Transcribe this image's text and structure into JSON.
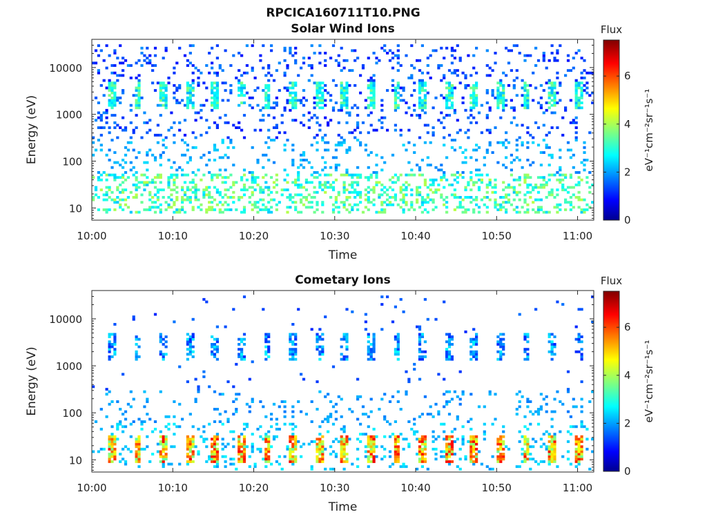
{
  "figure_title": "RPCICA160711T10.PNG",
  "chart_data": [
    {
      "type": "heatmap",
      "title": "Solar Wind Ions",
      "xlabel": "Time",
      "ylabel": "Energy (eV)",
      "x_ticks": [
        "10:00",
        "10:10",
        "10:20",
        "10:30",
        "10:40",
        "10:50",
        "11:00"
      ],
      "xlim": [
        "10:00",
        "11:02"
      ],
      "y_scale": "log",
      "y_ticks": [
        "10",
        "100",
        "1000",
        "10000"
      ],
      "ylim": [
        5.5,
        40000
      ],
      "colorbar": {
        "title": "Flux",
        "label": "eV⁻¹cm⁻²sr⁻¹s⁻¹",
        "ticks": [
          "0",
          "2",
          "4",
          "6"
        ],
        "range": [
          0,
          7.5
        ],
        "colormap": "jet"
      },
      "features": [
        {
          "energy_band": [
            1300,
            4500
          ],
          "flux": [
            2,
            3.5
          ],
          "period_min": 3.2,
          "description_value": "periodic bursts"
        },
        {
          "energy_band": [
            7,
            30
          ],
          "flux": [
            2.5,
            4
          ]
        }
      ]
    },
    {
      "type": "heatmap",
      "title": "Cometary Ions",
      "xlabel": "Time",
      "ylabel": "Energy (eV)",
      "x_ticks": [
        "10:00",
        "10:10",
        "10:20",
        "10:30",
        "10:40",
        "10:50",
        "11:00"
      ],
      "xlim": [
        "10:00",
        "11:02"
      ],
      "y_scale": "log",
      "y_ticks": [
        "10",
        "100",
        "1000",
        "10000"
      ],
      "ylim": [
        5.5,
        40000
      ],
      "colorbar": {
        "title": "Flux",
        "label": "eV⁻¹cm⁻²sr⁻¹s⁻¹",
        "ticks": [
          "0",
          "2",
          "4",
          "6"
        ],
        "range": [
          0,
          7.5
        ],
        "colormap": "jet"
      },
      "features": [
        {
          "energy_band": [
            1300,
            4500
          ],
          "flux": [
            1.5,
            2.5
          ],
          "period_min": 3.2
        },
        {
          "energy_band": [
            8,
            30
          ],
          "flux": [
            3.5,
            6.5
          ],
          "period_min": 3.2
        }
      ]
    }
  ]
}
